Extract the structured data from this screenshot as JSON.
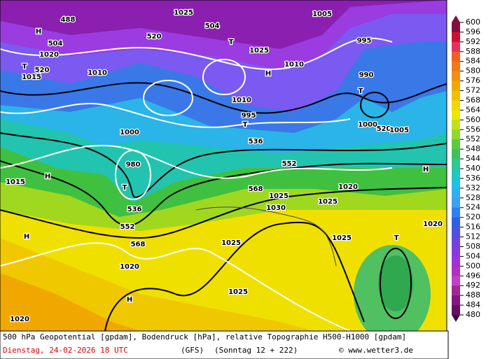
{
  "map": {
    "labels": [
      "488",
      "504",
      "H",
      "T",
      "520",
      "1015",
      "1020",
      "1025",
      "504",
      "520",
      "T",
      "H",
      "1010",
      "1005",
      "995",
      "990",
      "T",
      "520",
      "1005",
      "1000",
      "T",
      "1010",
      "995",
      "980",
      "T",
      "536",
      "552",
      "568",
      "H",
      "1015",
      "1025",
      "1030",
      "1025",
      "536",
      "1025",
      "1020",
      "552",
      "H",
      "T",
      "1020",
      "1025",
      "568",
      "H",
      "1020",
      "1025",
      "H",
      "1025",
      "1020",
      "1000",
      "1010"
    ],
    "legend": {
      "levels": [
        600,
        596,
        592,
        588,
        584,
        580,
        576,
        572,
        568,
        564,
        560,
        556,
        552,
        548,
        544,
        540,
        536,
        532,
        528,
        524,
        520,
        516,
        512,
        508,
        504,
        500,
        496,
        492,
        488,
        484,
        480
      ]
    },
    "footer": {
      "description": "500 hPa Geopotential [gpdam], Bodendruck [hPa], relative Topographie H500-H1000 [gpdam]",
      "date": "Dienstag, 24-02-2026  18 UTC",
      "model": "(GFS)",
      "run": "(Sonntag 12 + 222)",
      "credit": "© www.wetter3.de"
    }
  }
}
